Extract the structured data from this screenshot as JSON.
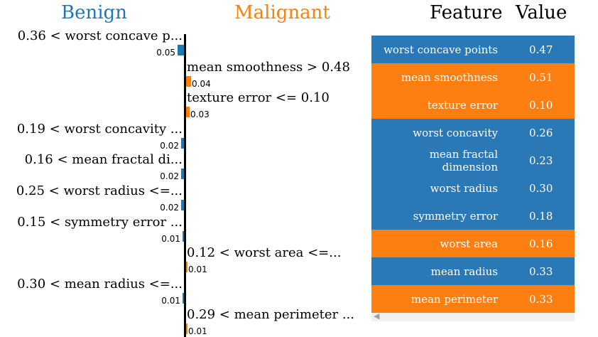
{
  "headers": {
    "benign": "Benign",
    "malignant": "Malignant",
    "feature": "Feature",
    "value": "Value"
  },
  "colors": {
    "benign": "#1f77b4",
    "malignant": "#ff7f0e",
    "row_benign": "#2b78b6",
    "row_malignant": "#fd7f12"
  },
  "chart_data": {
    "type": "bar",
    "orientation": "horizontal-diverging",
    "categories": [
      "0.36 < worst concave p...",
      "mean smoothness > 0.48",
      "texture error <= 0.10",
      "0.19 < worst concavity ...",
      "0.16 < mean fractal di...",
      "0.25 < worst radius <=...",
      "0.15 < symmetry error ...",
      "0.12 < worst area <=...",
      "0.30 < mean radius <=...",
      "0.29 < mean perimeter ..."
    ],
    "values": [
      0.05,
      0.04,
      0.03,
      0.02,
      0.02,
      0.02,
      0.01,
      0.01,
      0.01,
      0.01
    ],
    "value_labels": [
      "0.05",
      "0.04",
      "0.03",
      "0.02",
      "0.02",
      "0.02",
      "0.01",
      "0.01",
      "0.01",
      "0.01"
    ],
    "classes": [
      "Benign",
      "Malignant",
      "Malignant",
      "Benign",
      "Benign",
      "Benign",
      "Benign",
      "Malignant",
      "Benign",
      "Malignant"
    ]
  },
  "feature_table": {
    "rows": [
      {
        "feature": "worst concave points",
        "value": "0.47",
        "class": "Benign"
      },
      {
        "feature": "mean smoothness",
        "value": "0.51",
        "class": "Malignant"
      },
      {
        "feature": "texture error",
        "value": "0.10",
        "class": "Malignant"
      },
      {
        "feature": "worst concavity",
        "value": "0.26",
        "class": "Benign"
      },
      {
        "feature": "mean fractal dimension",
        "value": "0.23",
        "class": "Benign"
      },
      {
        "feature": "worst radius",
        "value": "0.30",
        "class": "Benign"
      },
      {
        "feature": "symmetry error",
        "value": "0.18",
        "class": "Benign"
      },
      {
        "feature": "worst area",
        "value": "0.16",
        "class": "Malignant"
      },
      {
        "feature": "mean radius",
        "value": "0.33",
        "class": "Benign"
      },
      {
        "feature": "mean perimeter",
        "value": "0.33",
        "class": "Malignant"
      }
    ]
  }
}
